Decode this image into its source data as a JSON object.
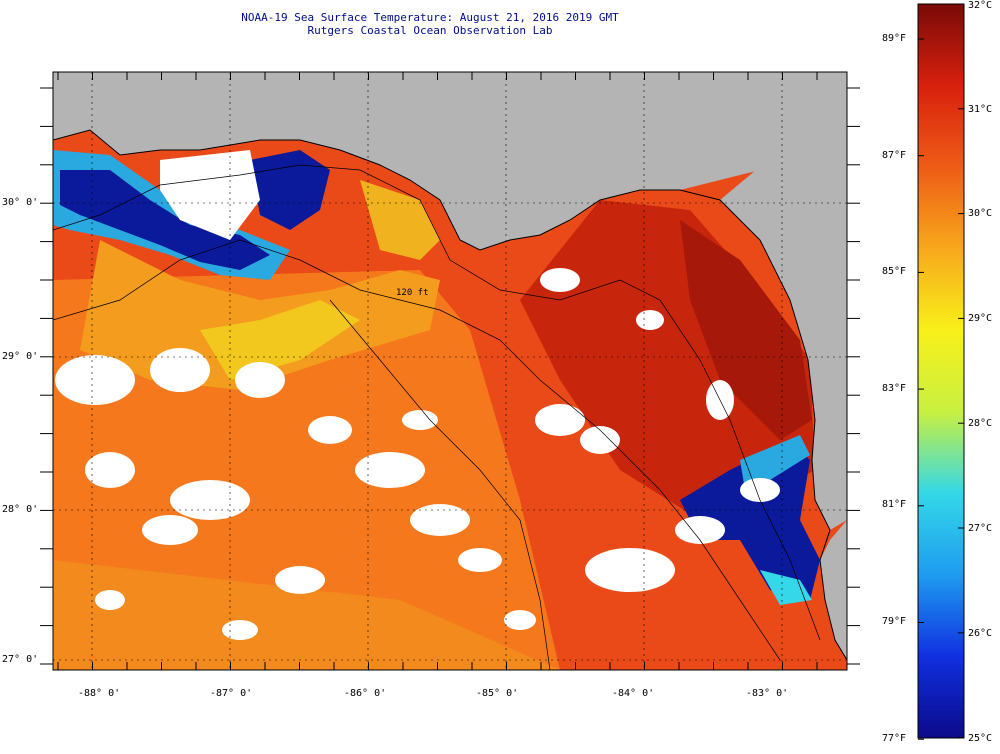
{
  "title": {
    "line1": "NOAA-19 Sea Surface Temperature:  August 21, 2016 2019 GMT",
    "line2": "Rutgers Coastal Ocean Observation Lab"
  },
  "map": {
    "lon_labels": [
      "-88° 0'",
      "-87° 0'",
      "-86° 0'",
      "-85° 0'",
      "-84° 0'",
      "-83° 0'"
    ],
    "lat_labels": [
      "30° 0'",
      "29° 0'",
      "28° 0'",
      "27° 0'"
    ],
    "contour_label": "120 ft",
    "colors": {
      "land": "#b4b4b4",
      "cloud": "#ffffff",
      "warm_dark": "#b41e0a",
      "warm": "#e8401a",
      "orange": "#f57d1c",
      "yellow": "#f2c81e",
      "cold": "#0a1a9a",
      "cyan": "#2aa8e0"
    }
  },
  "colorbar": {
    "min_c": 25,
    "max_c": 32,
    "celsius_labels": [
      "32°C",
      "31°C",
      "30°C",
      "29°C",
      "28°C",
      "27°C",
      "26°C",
      "25°C"
    ],
    "fahrenheit_labels": [
      "89°F",
      "87°F",
      "85°F",
      "83°F",
      "81°F",
      "79°F",
      "77°F"
    ],
    "stops": [
      "#0b0a8a",
      "#1030e0",
      "#1e9cf0",
      "#34d8e8",
      "#c8f040",
      "#f8f01a",
      "#f8a81c",
      "#ee5c16",
      "#d8200e",
      "#7a0a08"
    ]
  }
}
